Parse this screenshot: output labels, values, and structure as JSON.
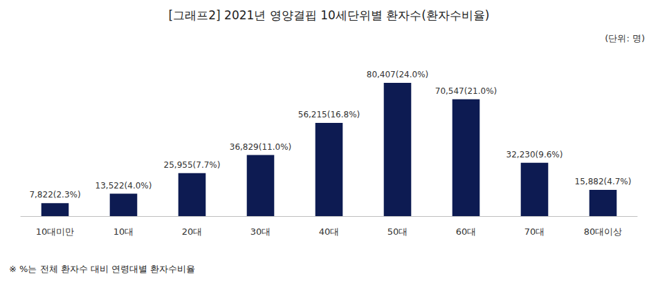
{
  "chart_data": {
    "type": "bar",
    "title": "[그래프2] 2021년 영양결핍 10세단위별 환자수(환자수비율)",
    "subtitle": "(단위: 명)",
    "annotations": [
      "※ %는 전체 환자수 대비 연령대별 환자수비율"
    ],
    "categories": [
      "10대미만",
      "10대",
      "20대",
      "30대",
      "40대",
      "50대",
      "60대",
      "70대",
      "80대이상"
    ],
    "values": [
      7822,
      13522,
      25955,
      36829,
      56215,
      80407,
      70547,
      32230,
      15882
    ],
    "value_labels": [
      "7,822(2.3%)",
      "13,522(4.0%)",
      "25,955(7.7%)",
      "36,829(11.0%)",
      "56,215(16.8%)",
      "80,407(24.0%)",
      "70,547(21.0%)",
      "32,230(9.6%)",
      "15,882(4.7%)"
    ],
    "color": "#0d1b52",
    "ylim": [
      0,
      90000
    ],
    "grid": false,
    "data_labels": true,
    "tick_labels": "x"
  }
}
